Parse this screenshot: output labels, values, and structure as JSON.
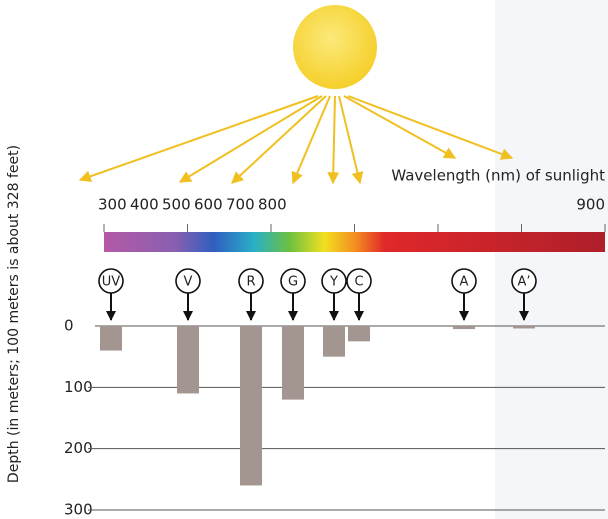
{
  "chart_data": {
    "type": "bar",
    "title": "Wavelength (nm) of sunlight",
    "y_label": "Depth (in meters; 100 meters is about 328 feet)",
    "categories": [
      "UV",
      "V",
      "R",
      "G",
      "Y",
      "C",
      "A",
      "A’"
    ],
    "values": [
      40,
      110,
      260,
      120,
      50,
      25,
      5,
      4
    ],
    "color": "#a3958f",
    "ylim": [
      0,
      300
    ],
    "yticks": [
      0,
      100,
      200,
      300
    ],
    "xlim": [
      300,
      900
    ],
    "xticks": [
      300,
      400,
      500,
      600,
      700,
      800,
      900
    ],
    "grid": true
  }
}
